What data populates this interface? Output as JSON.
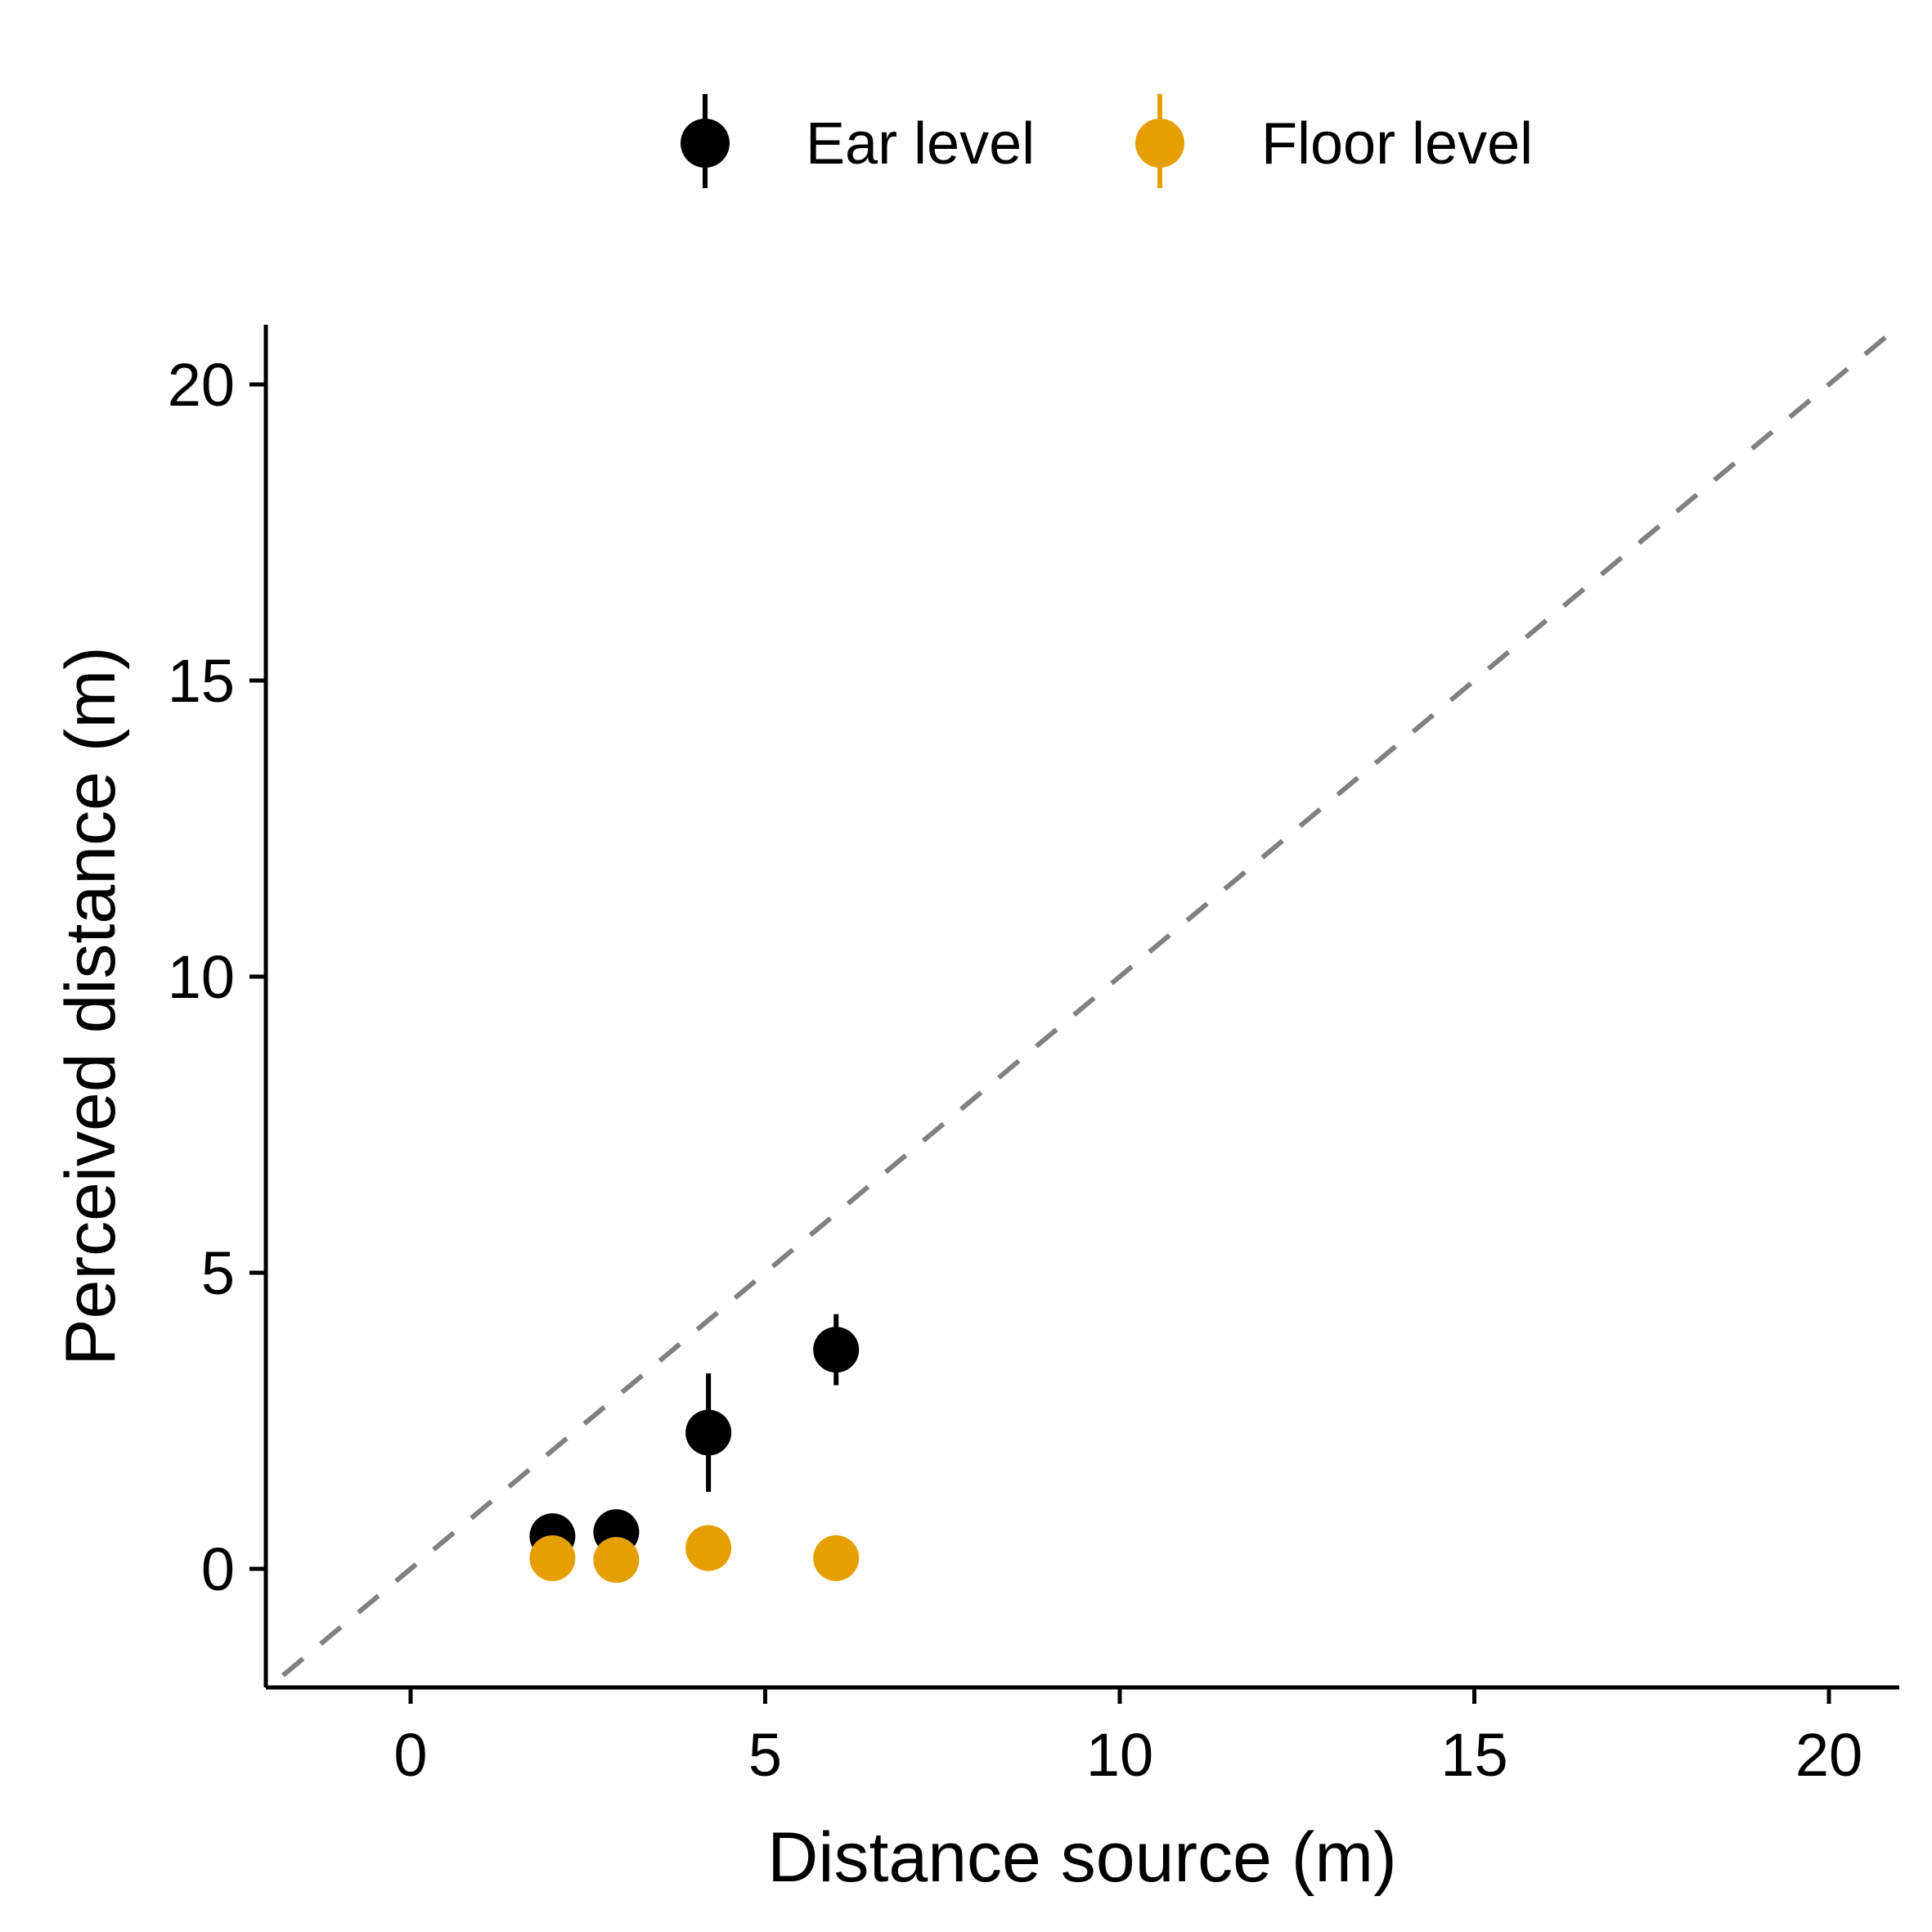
{
  "chart_data": {
    "type": "scatter",
    "title": "",
    "xlabel": "Distance source (m)",
    "ylabel": "Perceived distance (m)",
    "xlim": [
      -2,
      21
    ],
    "ylim": [
      -2,
      21
    ],
    "xticks": [
      0,
      5,
      10,
      15,
      20
    ],
    "yticks": [
      0,
      5,
      10,
      15,
      20
    ],
    "xtick_labels": [
      "0",
      "5",
      "10",
      "15",
      "20"
    ],
    "ytick_labels": [
      "0",
      "5",
      "10",
      "15",
      "20"
    ],
    "grid": false,
    "legend_position": "top",
    "reference_line": {
      "type": "identity",
      "style": "dashed",
      "color": "#808080"
    },
    "series": [
      {
        "name": "Ear level",
        "color": "#000000",
        "points": [
          {
            "x": 2.0,
            "y": 0.55,
            "ymin": 0.45,
            "ymax": 0.65
          },
          {
            "x": 2.9,
            "y": 0.62,
            "ymin": 0.52,
            "ymax": 0.72
          },
          {
            "x": 4.2,
            "y": 2.3,
            "ymin": 1.3,
            "ymax": 3.3
          },
          {
            "x": 6.0,
            "y": 3.7,
            "ymin": 3.1,
            "ymax": 4.3
          }
        ]
      },
      {
        "name": "Floor level",
        "color": "#E69F00",
        "points": [
          {
            "x": 2.0,
            "y": 0.18,
            "ymin": 0.12,
            "ymax": 0.24
          },
          {
            "x": 2.9,
            "y": 0.15,
            "ymin": 0.09,
            "ymax": 0.21
          },
          {
            "x": 4.2,
            "y": 0.35,
            "ymin": 0.29,
            "ymax": 0.41
          },
          {
            "x": 6.0,
            "y": 0.18,
            "ymin": 0.12,
            "ymax": 0.24
          }
        ]
      }
    ]
  }
}
